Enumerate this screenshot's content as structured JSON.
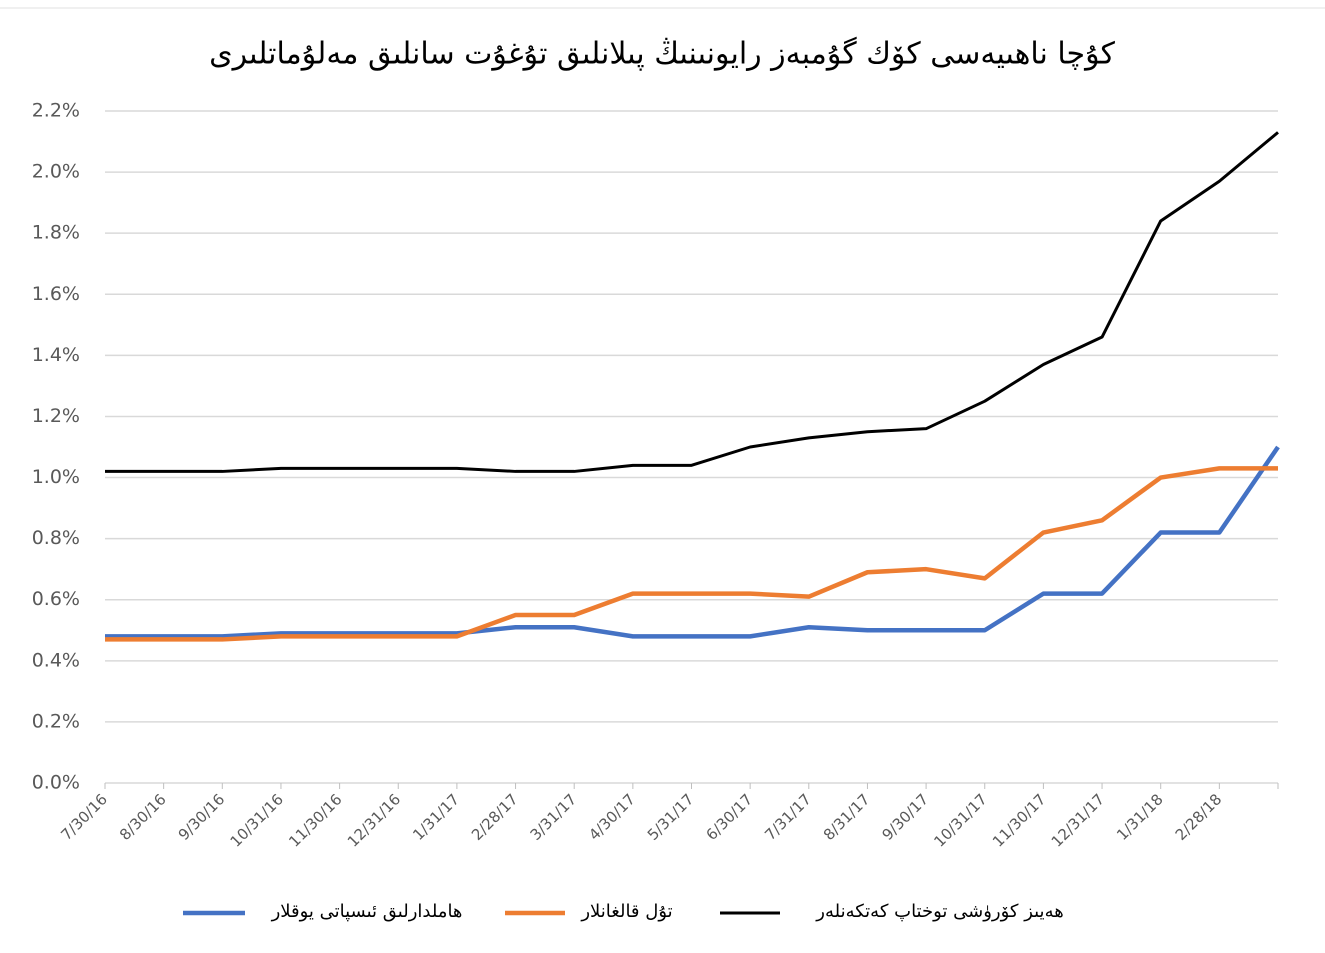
{
  "chart_data": {
    "type": "line",
    "title": "كۇچا ناھىيەسى كۆك گۇمبەز رايونىنىڭ پىلانلىق تۇغۇت سانلىق مەلۇماتلىرى",
    "categories": [
      "7/30/16",
      "8/30/16",
      "9/30/16",
      "10/31/16",
      "11/30/16",
      "12/31/16",
      "1/31/17",
      "2/28/17",
      "3/31/17",
      "4/30/17",
      "5/31/17",
      "6/30/17",
      "7/31/17",
      "8/31/17",
      "9/30/17",
      "10/31/17",
      "11/30/17",
      "12/31/17",
      "1/31/18",
      "2/28/18",
      null
    ],
    "series": [
      {
        "name": "هاملدارلىق ئىسپاتى يوقلار",
        "color": "#4472c4",
        "values": [
          0.48,
          0.48,
          0.48,
          0.49,
          0.49,
          0.49,
          0.49,
          0.51,
          0.51,
          0.48,
          0.48,
          0.48,
          0.51,
          0.5,
          0.5,
          0.5,
          0.62,
          0.62,
          0.82,
          0.82,
          1.1
        ]
      },
      {
        "name": "تۇل قالغانلار",
        "color": "#ed7d31",
        "values": [
          0.47,
          0.47,
          0.47,
          0.48,
          0.48,
          0.48,
          0.48,
          0.55,
          0.55,
          0.62,
          0.62,
          0.62,
          0.61,
          0.69,
          0.7,
          0.67,
          0.82,
          0.86,
          1.0,
          1.03,
          1.03
        ]
      },
      {
        "name": "ھەيىز كۆرۈشى توختاپ كەتكەنلەر",
        "color": "#000000",
        "values": [
          1.02,
          1.02,
          1.02,
          1.03,
          1.03,
          1.03,
          1.03,
          1.02,
          1.02,
          1.04,
          1.04,
          1.1,
          1.13,
          1.15,
          1.16,
          1.25,
          1.37,
          1.46,
          1.84,
          1.97,
          2.13
        ]
      }
    ],
    "ylim": [
      0,
      2.2
    ],
    "yticks": [
      {
        "value": 0,
        "label": "0.0%"
      },
      {
        "value": 0.2,
        "label": "0.2%"
      },
      {
        "value": 0.4,
        "label": "0.4%"
      },
      {
        "value": 0.6,
        "label": "0.6%"
      },
      {
        "value": 0.8,
        "label": "0.8%"
      },
      {
        "value": 1.0,
        "label": "1.0%"
      },
      {
        "value": 1.2,
        "label": "1.2%"
      },
      {
        "value": 1.4,
        "label": "1.4%"
      },
      {
        "value": 1.6,
        "label": "1.6%"
      },
      {
        "value": 1.8,
        "label": "1.8%"
      },
      {
        "value": 2.0,
        "label": "2.0%"
      },
      {
        "value": 2.2,
        "label": "2.2%"
      }
    ],
    "grid": true,
    "legend": "bottom"
  }
}
